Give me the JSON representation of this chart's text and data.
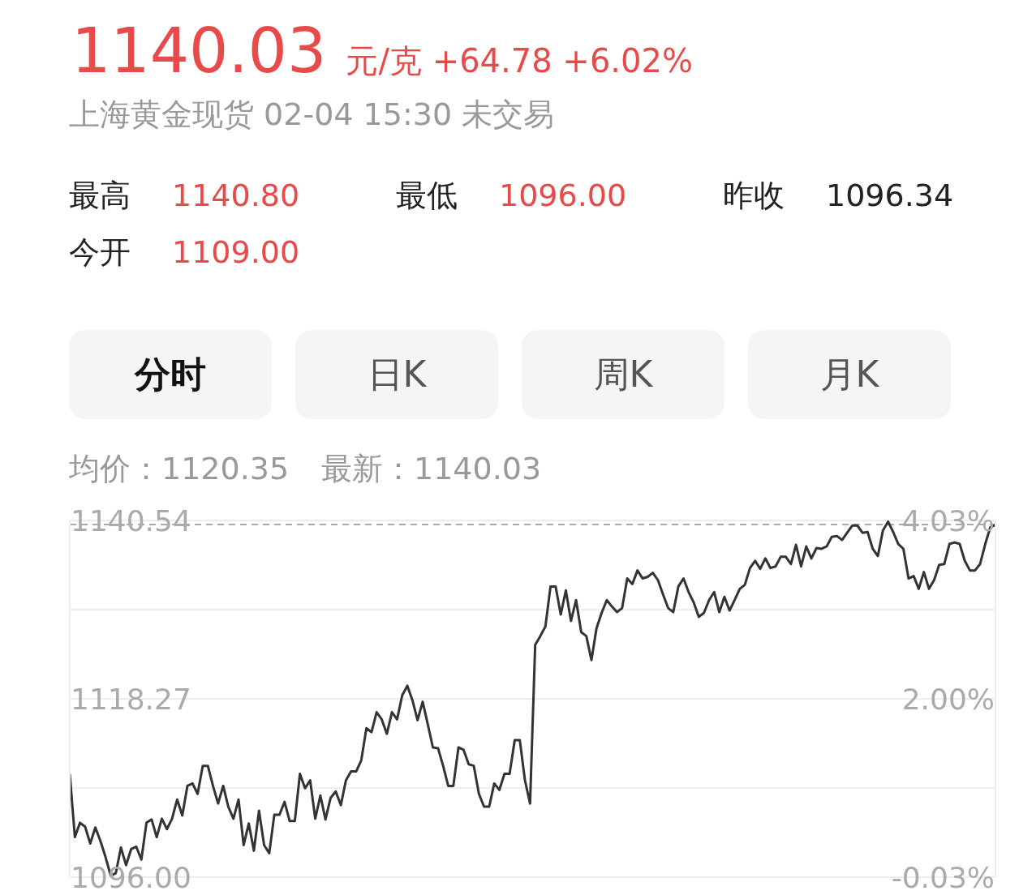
{
  "chart_data": {
    "type": "line",
    "title": "1140.03 元/克 +64.78 +6.02%",
    "subtitle": "上海黄金现货 02-04 15:30 未交易",
    "annotations": [
      "最高 1140.80",
      "最低 1096.00",
      "昨收 1096.34",
      "今开 1109.00",
      "分时",
      "日K",
      "周K",
      "月K",
      "均价：1120.35",
      "最新：1140.03"
    ],
    "categories": [
      null,
      null,
      null,
      null,
      null,
      null,
      null,
      null,
      null,
      null,
      null,
      null,
      null,
      null,
      null,
      null,
      null,
      null,
      null,
      null,
      null,
      null,
      null,
      null,
      null,
      null,
      null,
      null,
      null,
      null,
      null,
      null,
      null,
      null,
      null,
      null,
      null,
      null,
      null,
      null,
      null,
      null,
      null,
      null,
      null,
      null,
      null,
      null,
      null,
      null,
      null,
      null,
      null,
      null,
      null,
      null,
      null,
      null,
      null,
      null,
      null,
      null,
      null,
      null,
      null,
      null,
      null,
      null,
      null,
      null,
      null,
      null,
      null,
      null,
      null,
      null,
      null,
      null,
      null,
      null,
      null,
      null,
      null,
      null,
      null,
      null,
      null,
      null,
      null,
      null,
      null,
      null,
      null,
      null,
      null,
      null,
      null,
      null,
      null,
      null,
      null,
      null,
      null,
      null,
      null,
      null,
      null,
      null,
      null,
      null,
      null,
      null,
      null,
      null,
      null,
      null,
      null,
      null,
      null,
      null,
      null,
      null,
      null,
      null,
      null,
      null,
      null,
      null,
      null,
      null,
      null,
      null,
      null,
      null,
      null,
      null,
      null,
      null,
      null,
      null,
      null,
      null,
      null,
      null,
      null,
      null,
      null,
      null,
      null,
      null,
      null,
      null,
      null,
      null,
      null,
      null,
      null,
      null,
      null,
      null,
      null,
      null,
      null,
      null,
      null,
      null,
      null,
      null,
      null,
      null,
      null,
      null,
      null,
      null,
      null,
      null,
      null,
      null,
      null,
      null,
      null,
      null
    ],
    "series": [
      {
        "color": "#333333",
        "values": [
          1108.9,
          1101.0,
          1102.8,
          1102.3,
          1100.2,
          1102.2,
          1100.5,
          1098.5,
          1096.2,
          1096.5,
          1099.7,
          1097.5,
          1099.5,
          1099.8,
          1098.2,
          1102.8,
          1103.2,
          1101.0,
          1103.3,
          1102.0,
          1103.3,
          1105.7,
          1103.7,
          1107.4,
          1107.7,
          1106.4,
          1109.9,
          1109.9,
          1107.4,
          1105.2,
          1107.4,
          1104.8,
          1103.3,
          1105.7,
          1100.0,
          1102.7,
          1099.3,
          1104.3,
          1100.0,
          1099.0,
          1103.8,
          1103.8,
          1105.4,
          1103.0,
          1103.0,
          1108.9,
          1107.1,
          1108.1,
          1103.3,
          1106.2,
          1103.2,
          1105.9,
          1106.7,
          1105.0,
          1108.1,
          1109.2,
          1109.2,
          1110.6,
          1114.6,
          1114.1,
          1116.6,
          1115.7,
          1113.9,
          1116.6,
          1115.7,
          1118.7,
          1119.9,
          1118.1,
          1115.6,
          1117.9,
          1115.1,
          1112.2,
          1112.1,
          1109.9,
          1107.4,
          1107.4,
          1112.2,
          1111.9,
          1110.1,
          1109.9,
          1106.4,
          1104.8,
          1104.8,
          1107.7,
          1106.9,
          1108.9,
          1108.9,
          1113.1,
          1113.1,
          1108.1,
          1105.2,
          1125.0,
          1126.1,
          1127.3,
          1132.3,
          1132.3,
          1128.8,
          1131.8,
          1128.0,
          1130.6,
          1126.6,
          1126.1,
          1123.1,
          1127.1,
          1129.0,
          1130.6,
          1129.8,
          1129.1,
          1129.6,
          1133.3,
          1132.6,
          1134.3,
          1133.3,
          1133.5,
          1134.0,
          1133.1,
          1131.3,
          1129.6,
          1129.1,
          1132.3,
          1133.3,
          1131.6,
          1130.3,
          1128.5,
          1129.0,
          1130.6,
          1131.6,
          1129.1,
          1131.0,
          1129.3,
          1130.6,
          1132.0,
          1132.5,
          1134.6,
          1135.5,
          1134.5,
          1135.8,
          1134.6,
          1134.8,
          1136.0,
          1136.0,
          1135.1,
          1137.5,
          1134.8,
          1137.3,
          1135.8,
          1137.1,
          1137.0,
          1137.3,
          1138.5,
          1138.6,
          1138.1,
          1139.0,
          1139.9,
          1139.9,
          1139.0,
          1139.1,
          1137.0,
          1136.1,
          1139.3,
          1140.4,
          1139.1,
          1137.6,
          1137.0,
          1133.3,
          1133.6,
          1132.0,
          1134.1,
          1132.0,
          1133.1,
          1135.0,
          1135.1,
          1137.6,
          1137.8,
          1137.6,
          1135.5,
          1134.3,
          1134.3,
          1135.1,
          1137.6,
          1139.7,
          1140.0
        ]
      }
    ],
    "ylim": [
      1096,
      1140.54
    ],
    "yticks": [
      {
        "value": 1096,
        "label": "1096.00"
      },
      {
        "value": 1107.14,
        "label": null
      },
      1118.27,
      {
        "value": 1129.41,
        "label": null
      },
      1140.54
    ],
    "y2lim": [
      -0.03,
      4.03
    ],
    "y2ticks": [
      {
        "value": -0.03,
        "label": "-0.03%"
      },
      {
        "value": 2.0,
        "label": "2.00%"
      },
      {
        "value": 4.03,
        "label": "4.03%"
      }
    ],
    "ref_lines": [
      {
        "axis": "y",
        "value": 1140.03,
        "color": "#aaaaaa",
        "line_style": "dashed"
      }
    ],
    "grid": "y",
    "legend": false,
    "tick_labels": "y",
    "marker": "none",
    "line_style": "solid"
  }
}
